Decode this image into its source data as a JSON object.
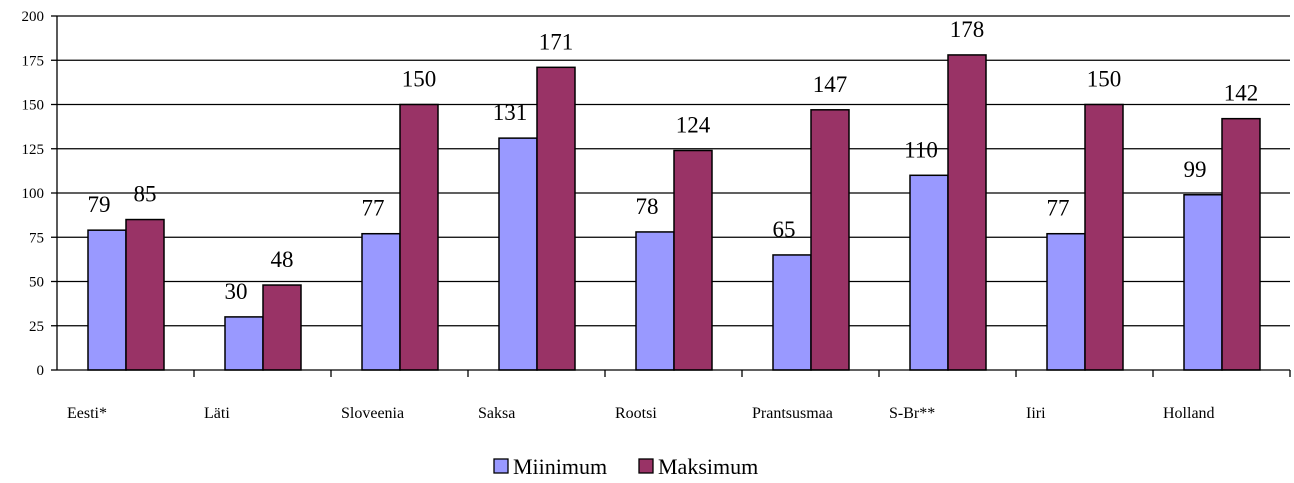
{
  "chart_data": {
    "type": "bar",
    "categories": [
      "Eesti*",
      "Läti",
      "Sloveenia",
      "Saksa",
      "Rootsi",
      "Prantsusmaa",
      "S-Br**",
      "Iiri",
      "Holland"
    ],
    "series": [
      {
        "name": "Miinimum",
        "values": [
          79,
          30,
          77,
          131,
          78,
          65,
          110,
          77,
          99
        ]
      },
      {
        "name": "Maksimum",
        "values": [
          85,
          48,
          150,
          171,
          124,
          147,
          178,
          150,
          142
        ]
      }
    ],
    "ylim": [
      0,
      200
    ],
    "yticks": [
      0,
      25,
      50,
      75,
      100,
      125,
      150,
      175,
      200
    ],
    "ytick_labels": [
      "0",
      "25",
      "50",
      "75",
      "100",
      "125",
      "150",
      "175",
      "200"
    ],
    "grid": true,
    "legend_position": "bottom",
    "colors": {
      "Miinimum": "#9999ff",
      "Maksimum": "#993366"
    },
    "title": "",
    "xlabel": "",
    "ylabel": ""
  }
}
